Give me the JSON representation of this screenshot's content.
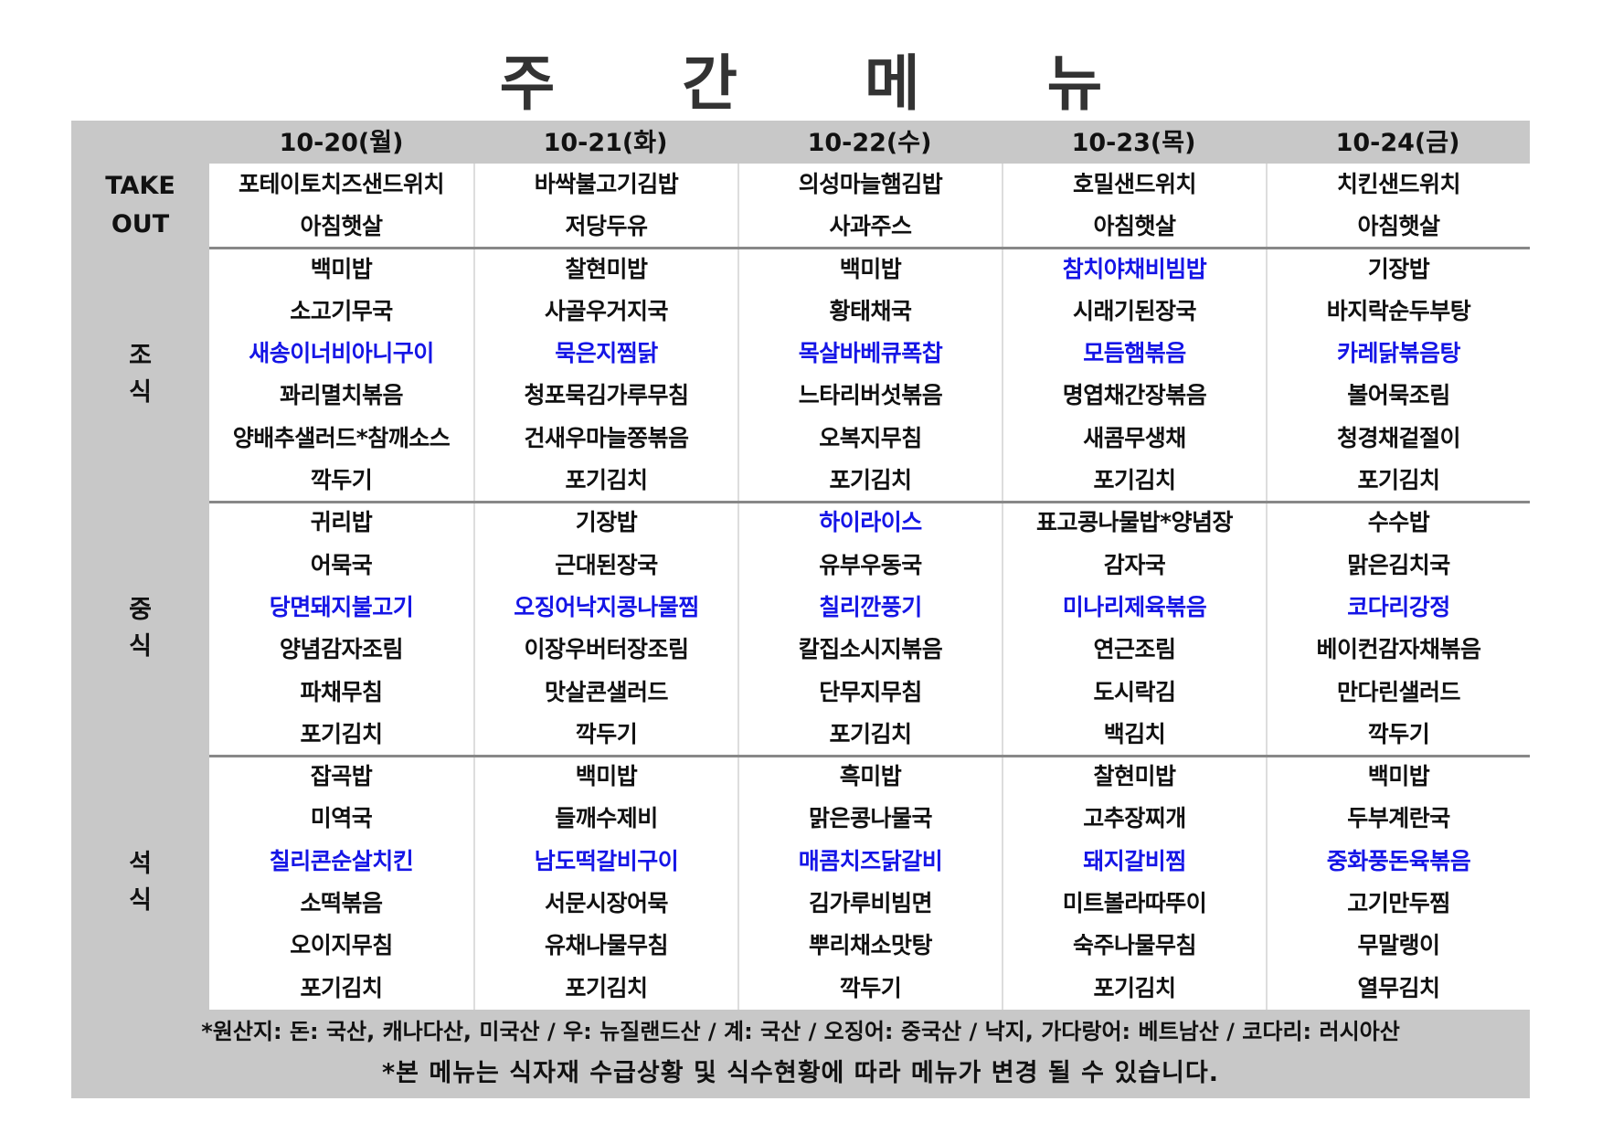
{
  "title": "주 간 메 뉴",
  "days": [
    "10-20(월)",
    "10-21(화)",
    "10-22(수)",
    "10-23(목)",
    "10-24(금)"
  ],
  "highlight_color": "#1515e6",
  "meals": [
    {
      "label_lines": [
        "TAKE",
        "OUT"
      ],
      "highlight_index": -1,
      "columns": [
        [
          "포테이토치즈샌드위치",
          "아침햇살"
        ],
        [
          "바싹불고기김밥",
          "저당두유"
        ],
        [
          "의성마늘햄김밥",
          "사과주스"
        ],
        [
          "호밀샌드위치",
          "아침햇살"
        ],
        [
          "치킨샌드위치",
          "아침햇살"
        ]
      ]
    },
    {
      "label_lines": [
        "조",
        "식"
      ],
      "highlight_index": 2,
      "columns": [
        [
          "백미밥",
          "소고기무국",
          "새송이너비아니구이",
          "꽈리멸치볶음",
          "양배추샐러드*참깨소스",
          "깍두기"
        ],
        [
          "찰현미밥",
          "사골우거지국",
          "묵은지찜닭",
          "청포묵김가루무침",
          "건새우마늘쫑볶음",
          "포기김치"
        ],
        [
          "백미밥",
          "황태채국",
          "목살바베큐폭찹",
          "느타리버섯볶음",
          "오복지무침",
          "포기김치"
        ],
        [
          "참치야채비빔밥",
          "시래기된장국",
          "모듬햄볶음",
          "명엽채간장볶음",
          "새콤무생채",
          "포기김치"
        ],
        [
          "기장밥",
          "바지락순두부탕",
          "카레닭볶음탕",
          "볼어묵조림",
          "청경채겉절이",
          "포기김치"
        ]
      ]
    },
    {
      "label_lines": [
        "중",
        "식"
      ],
      "highlight_index": 2,
      "columns": [
        [
          "귀리밥",
          "어묵국",
          "당면돼지불고기",
          "양념감자조림",
          "파채무침",
          "포기김치"
        ],
        [
          "기장밥",
          "근대된장국",
          "오징어낙지콩나물찜",
          "이장우버터장조림",
          "맛살콘샐러드",
          "깍두기"
        ],
        [
          "하이라이스",
          "유부우동국",
          "칠리깐풍기",
          "칼집소시지볶음",
          "단무지무침",
          "포기김치"
        ],
        [
          "표고콩나물밥*양념장",
          "감자국",
          "미나리제육볶음",
          "연근조림",
          "도시락김",
          "백김치"
        ],
        [
          "수수밥",
          "맑은김치국",
          "코다리강정",
          "베이컨감자채볶음",
          "만다린샐러드",
          "깍두기"
        ]
      ]
    },
    {
      "label_lines": [
        "석",
        "식"
      ],
      "highlight_index": 2,
      "columns": [
        [
          "잡곡밥",
          "미역국",
          "칠리콘순살치킨",
          "소떡볶음",
          "오이지무침",
          "포기김치"
        ],
        [
          "백미밥",
          "들깨수제비",
          "남도떡갈비구이",
          "서문시장어묵",
          "유채나물무침",
          "포기김치"
        ],
        [
          "흑미밥",
          "맑은콩나물국",
          "매콤치즈닭갈비",
          "김가루비빔면",
          "뿌리채소맛탕",
          "깍두기"
        ],
        [
          "찰현미밥",
          "고추장찌개",
          "돼지갈비찜",
          "미트볼라따뚜이",
          "숙주나물무침",
          "포기김치"
        ],
        [
          "백미밥",
          "두부계란국",
          "중화풍돈육볶음",
          "고기만두찜",
          "무말랭이",
          "열무김치"
        ]
      ]
    }
  ],
  "extra_highlights": [
    {
      "meal": 1,
      "col": 3,
      "item": 0
    },
    {
      "meal": 2,
      "col": 2,
      "item": 0
    }
  ],
  "footer": {
    "origin": "*원산지: 돈: 국산, 캐나다산, 미국산 / 우: 뉴질랜드산 / 계: 국산 / 오징어: 중국산 / 낙지, 가다랑어: 베트남산 / 코다리: 러시아산",
    "notice": "*본 메뉴는 식자재 수급상황 및 식수현황에 따라 메뉴가 변경 될 수 있습니다."
  }
}
